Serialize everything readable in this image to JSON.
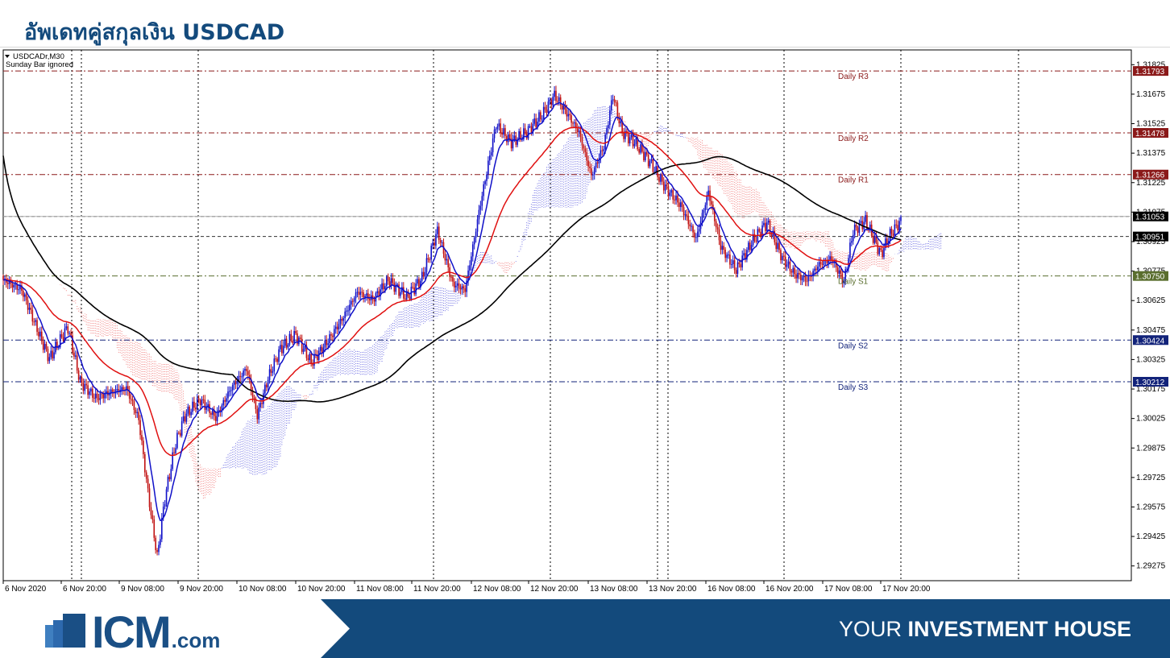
{
  "page": {
    "title": "อัพเดทคู่สกุลเงิน USDCAD"
  },
  "chart_header": {
    "symbol": "USDCADr,M30",
    "note": "Sunday Bar ignored"
  },
  "footer": {
    "logo_main": "ICM",
    "logo_suffix": ".com",
    "slogan_light": "YOUR ",
    "slogan_bold": "INVESTMENT HOUSE",
    "band_color": "#134a7c"
  },
  "chart_data": {
    "type": "candlestick",
    "symbol": "USDCADr",
    "timeframe": "M30",
    "ylim": [
      1.292,
      1.319
    ],
    "y_ticks": [
      "1.31825",
      "1.31675",
      "1.31525",
      "1.31375",
      "1.31225",
      "1.31075",
      "1.30925",
      "1.30775",
      "1.30625",
      "1.30475",
      "1.30325",
      "1.30175",
      "1.30025",
      "1.29875",
      "1.29725",
      "1.29575",
      "1.29425",
      "1.29275"
    ],
    "x_ticks": [
      "6 Nov 2020",
      "6 Nov 20:00",
      "9 Nov 08:00",
      "9 Nov 20:00",
      "10 Nov 08:00",
      "10 Nov 20:00",
      "11 Nov 08:00",
      "11 Nov 20:00",
      "12 Nov 08:00",
      "12 Nov 20:00",
      "13 Nov 08:00",
      "13 Nov 20:00",
      "16 Nov 08:00",
      "16 Nov 20:00",
      "17 Nov 08:00",
      "17 Nov 20:00"
    ],
    "price_levels": [
      {
        "label": "Daily R3",
        "value": "1.31793",
        "color": "#8b1a1a"
      },
      {
        "label": "Daily R2",
        "value": "1.31478",
        "color": "#8b1a1a"
      },
      {
        "label": "Daily R1",
        "value": "1.31266",
        "color": "#8b1a1a"
      },
      {
        "label": "",
        "value": "1.31053",
        "color": "#000000"
      },
      {
        "label": "",
        "value": "1.30951",
        "color": "#000000"
      },
      {
        "label": "Daily S1",
        "value": "1.30750",
        "color": "#5a6e2e"
      },
      {
        "label": "Daily S2",
        "value": "1.30424",
        "color": "#12237a"
      },
      {
        "label": "Daily S3",
        "value": "1.30212",
        "color": "#12237a"
      }
    ],
    "anchors": [
      [
        0,
        1.3073
      ],
      [
        12,
        1.3068
      ],
      [
        25,
        1.3042
      ],
      [
        30,
        1.3033
      ],
      [
        42,
        1.3049
      ],
      [
        50,
        1.3021
      ],
      [
        60,
        1.3013
      ],
      [
        70,
        1.3016
      ],
      [
        80,
        1.3018
      ],
      [
        88,
        1.3002
      ],
      [
        94,
        1.2965
      ],
      [
        100,
        1.2932
      ],
      [
        105,
        1.2962
      ],
      [
        112,
        1.299
      ],
      [
        118,
        1.3004
      ],
      [
        128,
        1.3012
      ],
      [
        138,
        1.3003
      ],
      [
        148,
        1.3018
      ],
      [
        158,
        1.3028
      ],
      [
        165,
        1.3004
      ],
      [
        172,
        1.3023
      ],
      [
        180,
        1.3038
      ],
      [
        190,
        1.3045
      ],
      [
        200,
        1.3031
      ],
      [
        210,
        1.3041
      ],
      [
        220,
        1.3053
      ],
      [
        230,
        1.3067
      ],
      [
        240,
        1.3063
      ],
      [
        250,
        1.3073
      ],
      [
        262,
        1.3064
      ],
      [
        272,
        1.3074
      ],
      [
        282,
        1.3098
      ],
      [
        292,
        1.3071
      ],
      [
        300,
        1.3068
      ],
      [
        310,
        1.3112
      ],
      [
        320,
        1.3152
      ],
      [
        330,
        1.3143
      ],
      [
        340,
        1.3148
      ],
      [
        350,
        1.3157
      ],
      [
        358,
        1.3167
      ],
      [
        366,
        1.3158
      ],
      [
        374,
        1.3148
      ],
      [
        382,
        1.3126
      ],
      [
        390,
        1.3141
      ],
      [
        396,
        1.3167
      ],
      [
        402,
        1.3148
      ],
      [
        410,
        1.3143
      ],
      [
        420,
        1.3133
      ],
      [
        430,
        1.312
      ],
      [
        440,
        1.3111
      ],
      [
        450,
        1.3094
      ],
      [
        458,
        1.3118
      ],
      [
        466,
        1.309
      ],
      [
        476,
        1.3078
      ],
      [
        486,
        1.3092
      ],
      [
        496,
        1.3102
      ],
      [
        506,
        1.3084
      ],
      [
        514,
        1.3076
      ],
      [
        522,
        1.3073
      ],
      [
        530,
        1.3081
      ],
      [
        538,
        1.3084
      ],
      [
        546,
        1.3072
      ],
      [
        552,
        1.3098
      ],
      [
        560,
        1.3103
      ],
      [
        570,
        1.3086
      ],
      [
        576,
        1.3096
      ],
      [
        583,
        1.3103
      ]
    ],
    "ichimoku_lines": [],
    "series": [
      {
        "name": "",
        "color": "#1010c8"
      },
      {
        "name": "",
        "color": "#e01010"
      },
      {
        "name": "",
        "color": "#000000"
      }
    ],
    "bull_color": "#1010c8",
    "bear_color": "#c01010"
  }
}
